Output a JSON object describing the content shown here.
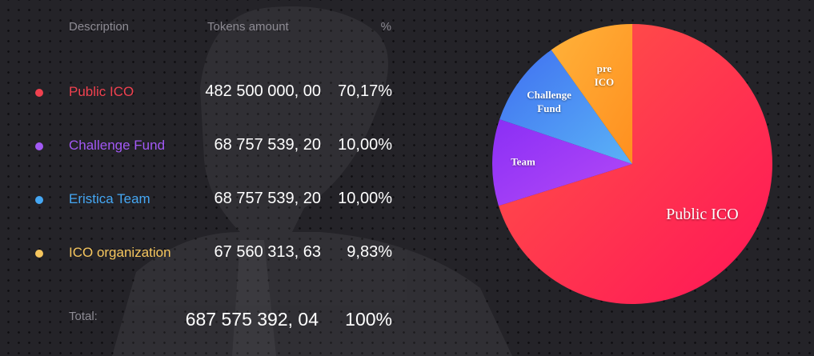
{
  "table": {
    "headers": {
      "description": "Description",
      "tokens": "Tokens amount",
      "percent": "%"
    },
    "rows": [
      {
        "description": "Public ICO",
        "tokens": "482 500 000, 00",
        "percent": "70,17%",
        "color": "#f0414f"
      },
      {
        "description": "Challenge Fund",
        "tokens": "68 757 539, 20",
        "percent": "10,00%",
        "color": "#a259f5"
      },
      {
        "description": "Eristica Team",
        "tokens": "68 757 539, 20",
        "percent": "10,00%",
        "color": "#45a7f3"
      },
      {
        "description": "ICO organization",
        "tokens": "67 560 313, 63",
        "percent": "9,83%",
        "color": "#f6c65e"
      }
    ],
    "total": {
      "label": "Total:",
      "tokens": "687 575 392, 04",
      "percent": "100%"
    }
  },
  "chart_data": {
    "type": "pie",
    "slices": [
      {
        "label": "Public ICO",
        "value": 70.17,
        "color_start": "#ff5a45",
        "color_end": "#ff1457"
      },
      {
        "label": "Team",
        "value": 10.0,
        "color_start": "#8a2ff5",
        "color_end": "#b54af7"
      },
      {
        "label": "Challenge Fund",
        "value": 10.0,
        "color_start": "#3f6ff0",
        "color_end": "#5bb3f7"
      },
      {
        "label": "pre ICO",
        "value": 9.83,
        "color_start": "#ffb23a",
        "color_end": "#ff8f1f"
      }
    ]
  }
}
